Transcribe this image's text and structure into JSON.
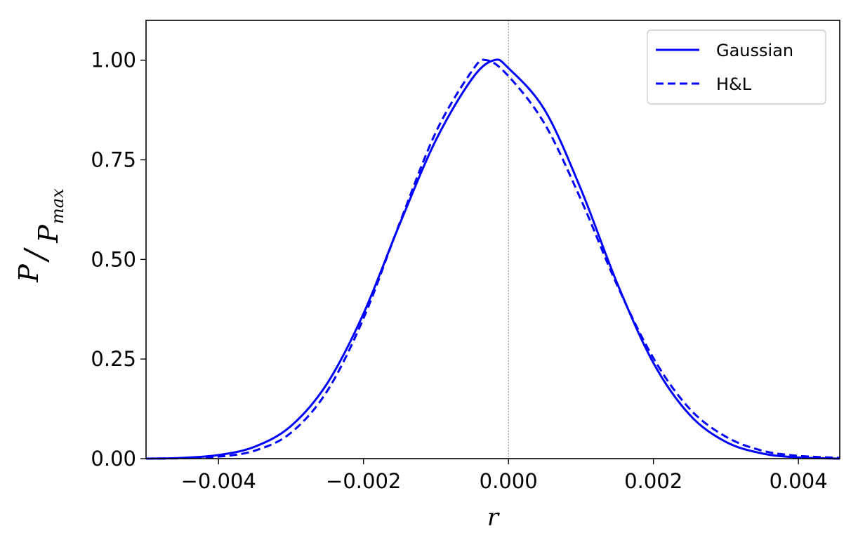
{
  "chart_data": {
    "type": "line",
    "title": "",
    "xlabel": "r",
    "ylabel": {
      "numerator": "P",
      "denominator": "P",
      "denominator_subscript": "max"
    },
    "xlim": [
      -0.005,
      0.00457
    ],
    "ylim": [
      0.0,
      1.1
    ],
    "x_ticks": [
      -0.004,
      -0.002,
      0.0,
      0.002,
      0.004
    ],
    "x_tick_labels": [
      "−0.004",
      "−0.002",
      "0.000",
      "0.002",
      "0.004"
    ],
    "y_ticks": [
      0.0,
      0.25,
      0.5,
      0.75,
      1.0
    ],
    "y_tick_labels": [
      "0.00",
      "0.25",
      "0.50",
      "0.75",
      "1.00"
    ],
    "grid": false,
    "reference_line": {
      "orientation": "vertical",
      "x": 0.0,
      "style": "dotted",
      "color": "#888888"
    },
    "legend": {
      "placement": "top-right"
    },
    "series": [
      {
        "name": "Gaussian",
        "style": "solid",
        "color": "#0000ff",
        "points": [
          [
            -0.005,
            0.0
          ],
          [
            -0.0045,
            0.002
          ],
          [
            -0.004,
            0.009
          ],
          [
            -0.0035,
            0.03
          ],
          [
            -0.003,
            0.082
          ],
          [
            -0.0025,
            0.189
          ],
          [
            -0.002,
            0.364
          ],
          [
            -0.0015,
            0.589
          ],
          [
            -0.001,
            0.8
          ],
          [
            -0.0005,
            0.954
          ],
          [
            -0.0002,
            1.0
          ],
          [
            0.0,
            0.98
          ],
          [
            0.0005,
            0.875
          ],
          [
            0.001,
            0.676
          ],
          [
            0.0015,
            0.44
          ],
          [
            0.002,
            0.24
          ],
          [
            0.0025,
            0.11
          ],
          [
            0.003,
            0.042
          ],
          [
            0.0035,
            0.013
          ],
          [
            0.004,
            0.003
          ],
          [
            0.00457,
            0.0
          ]
        ]
      },
      {
        "name": "H&L",
        "style": "dashed",
        "color": "#0000ff",
        "points": [
          [
            -0.005,
            0.0
          ],
          [
            -0.0045,
            0.001
          ],
          [
            -0.004,
            0.005
          ],
          [
            -0.0035,
            0.02
          ],
          [
            -0.003,
            0.065
          ],
          [
            -0.0025,
            0.17
          ],
          [
            -0.002,
            0.352
          ],
          [
            -0.0015,
            0.592
          ],
          [
            -0.001,
            0.82
          ],
          [
            -0.0005,
            0.974
          ],
          [
            -0.0003,
            1.0
          ],
          [
            0.0,
            0.96
          ],
          [
            0.0005,
            0.84
          ],
          [
            0.001,
            0.65
          ],
          [
            0.0015,
            0.435
          ],
          [
            0.002,
            0.252
          ],
          [
            0.0025,
            0.125
          ],
          [
            0.003,
            0.055
          ],
          [
            0.0035,
            0.02
          ],
          [
            0.004,
            0.007
          ],
          [
            0.00457,
            0.002
          ]
        ]
      }
    ]
  }
}
